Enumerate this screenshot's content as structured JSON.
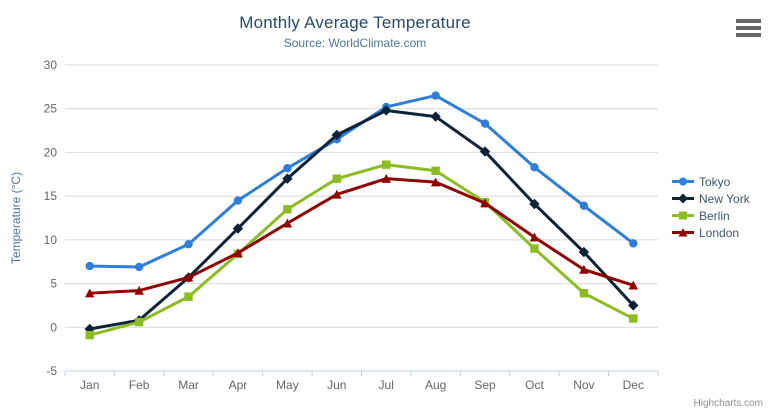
{
  "header": {
    "title": "Monthly Average Temperature",
    "subtitle": "Source: WorldClimate.com"
  },
  "menu": {
    "icon": "hamburger-icon"
  },
  "credit": {
    "label": "Highcharts.com"
  },
  "axes": {
    "y_title": "Temperature (°C)",
    "y_ticks": [
      -5,
      0,
      5,
      10,
      15,
      20,
      25,
      30
    ]
  },
  "colors": {
    "title": "#274b6d",
    "subtitle": "#4d759e",
    "axis_line": "#c0d0e0",
    "gridline": "#d8d8d8",
    "axis_label": "#666666",
    "legend_text": "#3e576f"
  },
  "chart_data": {
    "type": "line",
    "title": "Monthly Average Temperature",
    "subtitle": "Source: WorldClimate.com",
    "categories": [
      "Jan",
      "Feb",
      "Mar",
      "Apr",
      "May",
      "Jun",
      "Jul",
      "Aug",
      "Sep",
      "Oct",
      "Nov",
      "Dec"
    ],
    "xlabel": "",
    "ylabel": "Temperature (°C)",
    "ylim": [
      -5,
      30
    ],
    "y_tick_interval": 5,
    "grid": true,
    "legend_position": "right-middle",
    "series": [
      {
        "name": "Tokyo",
        "color": "#2f7ed8",
        "marker": "circle",
        "values": [
          7.0,
          6.9,
          9.5,
          14.5,
          18.2,
          21.5,
          25.2,
          26.5,
          23.3,
          18.3,
          13.9,
          9.6
        ]
      },
      {
        "name": "New York",
        "color": "#0d233a",
        "marker": "diamond",
        "values": [
          -0.2,
          0.8,
          5.7,
          11.3,
          17.0,
          22.0,
          24.8,
          24.1,
          20.1,
          14.1,
          8.6,
          2.5
        ]
      },
      {
        "name": "Berlin",
        "color": "#8bbc21",
        "marker": "square",
        "values": [
          -0.9,
          0.6,
          3.5,
          8.4,
          13.5,
          17.0,
          18.6,
          17.9,
          14.3,
          9.0,
          3.9,
          1.0
        ]
      },
      {
        "name": "London",
        "color": "#910000",
        "marker": "triangle",
        "values": [
          3.9,
          4.2,
          5.7,
          8.5,
          11.9,
          15.2,
          17.0,
          16.6,
          14.2,
          10.3,
          6.6,
          4.8
        ]
      }
    ]
  }
}
